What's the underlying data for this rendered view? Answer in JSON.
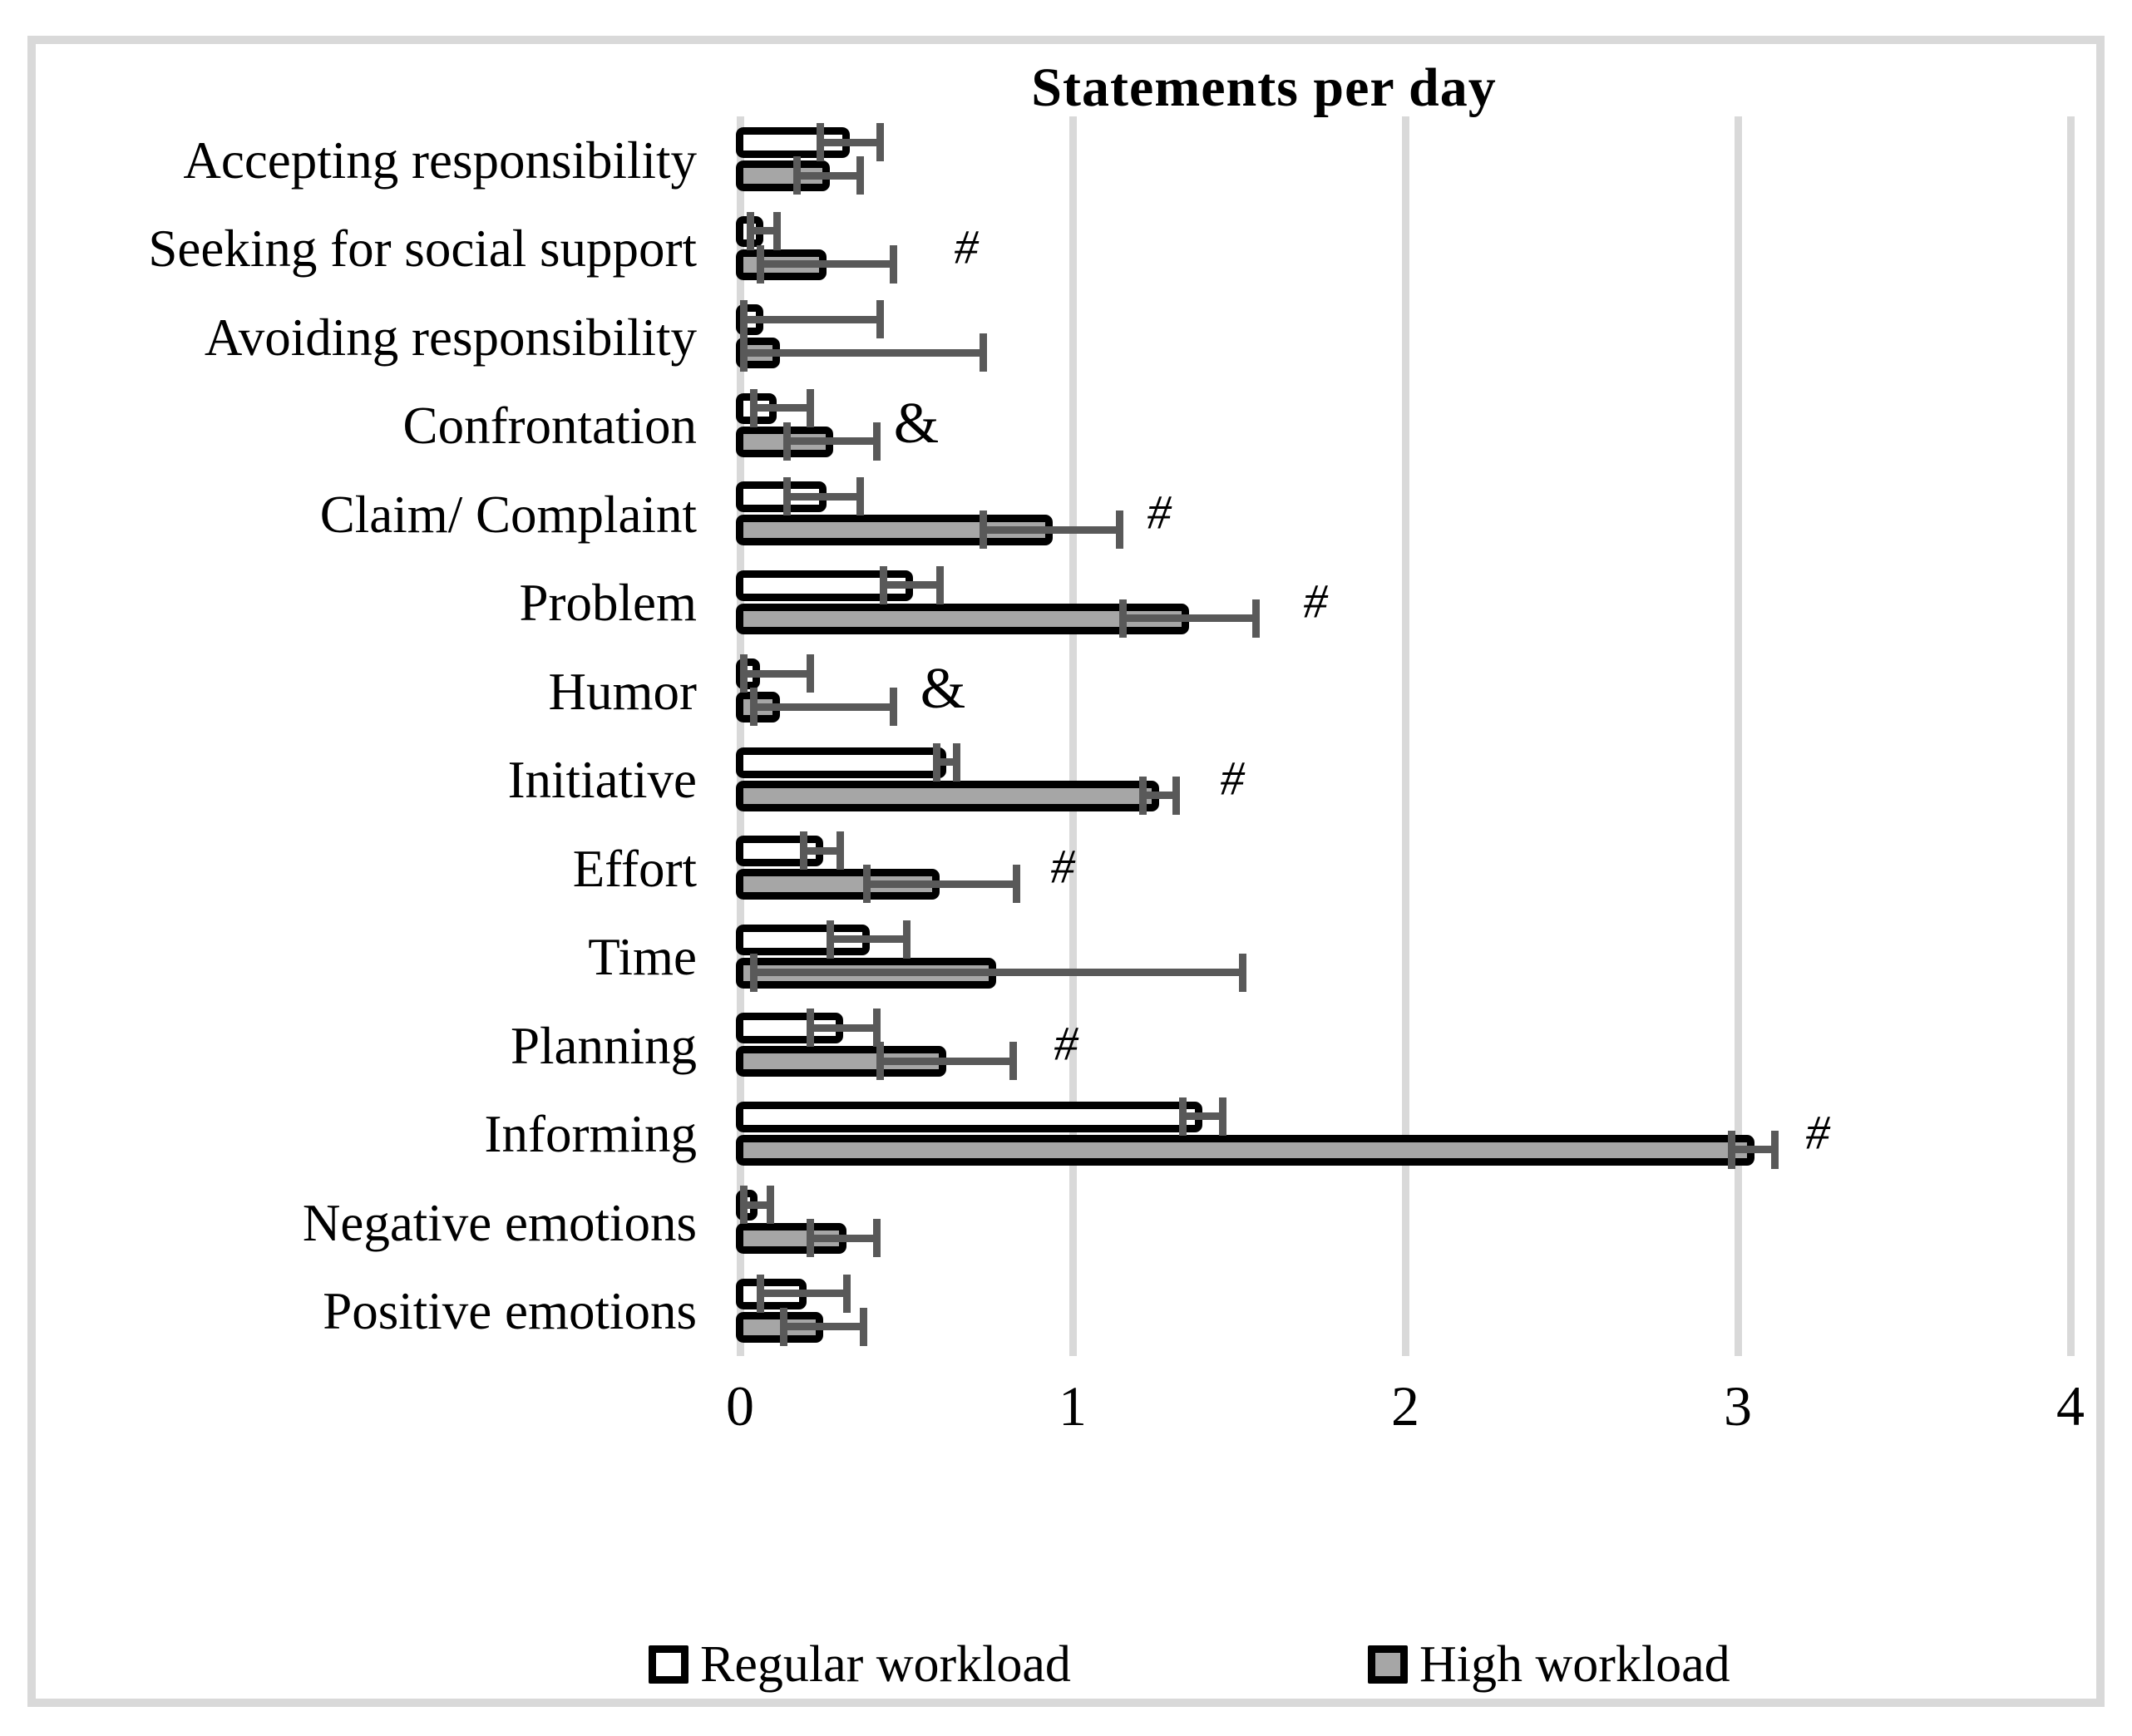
{
  "colors": {
    "regular_fill": "#ffffff",
    "high_fill": "#a6a6a6",
    "bar_border": "#000000",
    "error_bar": "#595959",
    "gridline": "#d9d9d9",
    "frame_border": "#d9d9d9",
    "text": "#000000"
  },
  "chart_data": {
    "type": "bar",
    "orientation": "horizontal",
    "title": "Statements per day",
    "xlabel": "",
    "ylabel": "",
    "grid": true,
    "x_axis": {
      "min": 0,
      "max": 4,
      "ticks": [
        0,
        1,
        2,
        3,
        4
      ]
    },
    "legend": {
      "position": "bottom",
      "items": [
        {
          "label": "Regular workload",
          "fill": "#ffffff"
        },
        {
          "label": "High workload",
          "fill": "#a6a6a6"
        }
      ]
    },
    "annotation_symbols_note": "# and & are significance markers printed beside bars",
    "categories": [
      {
        "name": "Accepting responsibility",
        "regular": {
          "value": 0.33,
          "err_lo": 0.24,
          "err_hi": 0.42
        },
        "high": {
          "value": 0.27,
          "err_lo": 0.17,
          "err_hi": 0.36
        },
        "annotation": null
      },
      {
        "name": "Seeking for social support",
        "regular": {
          "value": 0.07,
          "err_lo": 0.03,
          "err_hi": 0.11
        },
        "high": {
          "value": 0.26,
          "err_lo": 0.06,
          "err_hi": 0.46
        },
        "annotation": {
          "symbol": "#",
          "x": 0.68
        }
      },
      {
        "name": "Avoiding responsibility",
        "regular": {
          "value": 0.07,
          "err_lo": 0.01,
          "err_hi": 0.42
        },
        "high": {
          "value": 0.12,
          "err_lo": 0.01,
          "err_hi": 0.73
        },
        "annotation": null
      },
      {
        "name": "Confrontation",
        "regular": {
          "value": 0.11,
          "err_lo": 0.04,
          "err_hi": 0.21
        },
        "high": {
          "value": 0.28,
          "err_lo": 0.14,
          "err_hi": 0.41
        },
        "annotation": {
          "symbol": "&",
          "x": 0.53
        }
      },
      {
        "name": "Claim/ Complaint",
        "regular": {
          "value": 0.26,
          "err_lo": 0.14,
          "err_hi": 0.36
        },
        "high": {
          "value": 0.94,
          "err_lo": 0.73,
          "err_hi": 1.14
        },
        "annotation": {
          "symbol": "#",
          "x": 1.26
        }
      },
      {
        "name": "Problem",
        "regular": {
          "value": 0.52,
          "err_lo": 0.43,
          "err_hi": 0.6
        },
        "high": {
          "value": 1.35,
          "err_lo": 1.15,
          "err_hi": 1.55
        },
        "annotation": {
          "symbol": "#",
          "x": 1.73
        }
      },
      {
        "name": "Humor",
        "regular": {
          "value": 0.06,
          "err_lo": 0.01,
          "err_hi": 0.21
        },
        "high": {
          "value": 0.12,
          "err_lo": 0.04,
          "err_hi": 0.46
        },
        "annotation": {
          "symbol": "&",
          "x": 0.61
        }
      },
      {
        "name": "Initiative",
        "regular": {
          "value": 0.62,
          "err_lo": 0.59,
          "err_hi": 0.65
        },
        "high": {
          "value": 1.26,
          "err_lo": 1.21,
          "err_hi": 1.31
        },
        "annotation": {
          "symbol": "#",
          "x": 1.48
        }
      },
      {
        "name": "Effort",
        "regular": {
          "value": 0.25,
          "err_lo": 0.19,
          "err_hi": 0.3
        },
        "high": {
          "value": 0.6,
          "err_lo": 0.38,
          "err_hi": 0.83
        },
        "annotation": {
          "symbol": "#",
          "x": 0.97
        }
      },
      {
        "name": "Time",
        "regular": {
          "value": 0.39,
          "err_lo": 0.27,
          "err_hi": 0.5
        },
        "high": {
          "value": 0.77,
          "err_lo": 0.04,
          "err_hi": 1.51
        },
        "annotation": null
      },
      {
        "name": "Planning",
        "regular": {
          "value": 0.31,
          "err_lo": 0.21,
          "err_hi": 0.41
        },
        "high": {
          "value": 0.62,
          "err_lo": 0.42,
          "err_hi": 0.82
        },
        "annotation": {
          "symbol": "#",
          "x": 0.98
        }
      },
      {
        "name": "Informing",
        "regular": {
          "value": 1.39,
          "err_lo": 1.33,
          "err_hi": 1.45
        },
        "high": {
          "value": 3.05,
          "err_lo": 2.98,
          "err_hi": 3.11
        },
        "annotation": {
          "symbol": "#",
          "x": 3.24
        }
      },
      {
        "name": "Negative emotions",
        "regular": {
          "value": 0.05,
          "err_lo": 0.01,
          "err_hi": 0.09
        },
        "high": {
          "value": 0.32,
          "err_lo": 0.21,
          "err_hi": 0.41
        },
        "annotation": null
      },
      {
        "name": "Positive emotions",
        "regular": {
          "value": 0.2,
          "err_lo": 0.06,
          "err_hi": 0.32
        },
        "high": {
          "value": 0.25,
          "err_lo": 0.13,
          "err_hi": 0.37
        },
        "annotation": null
      }
    ]
  }
}
